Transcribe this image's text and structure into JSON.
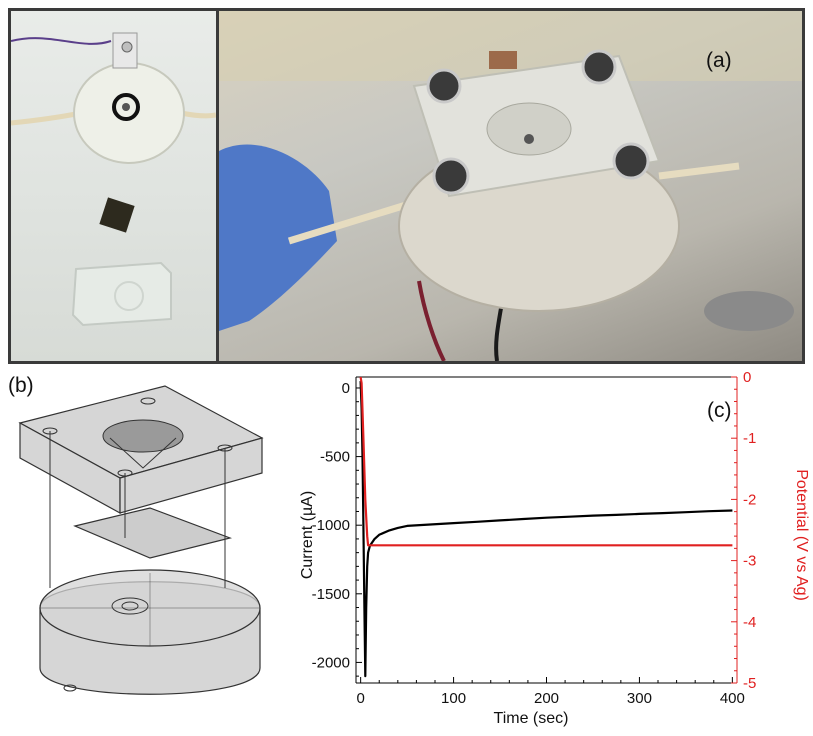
{
  "panels": {
    "a_label": "(a)",
    "b_label": "(b)",
    "c_label": "(c)"
  },
  "photos": {
    "left_subject": "disassembled electrochemical cell",
    "right_subject": "assembled electrochemical cell held in gloved hand"
  },
  "colors": {
    "current": "#000000",
    "potential": "#e02020",
    "frame": "#3a3a3a"
  },
  "chart_data": {
    "type": "line",
    "title": "",
    "xlabel": "Time (sec)",
    "ylabel": "Current (µA)",
    "y2label": "Potential (V vs Ag)",
    "xlim": [
      -5,
      405
    ],
    "ylim": [
      -2150,
      80
    ],
    "y2lim": [
      -5.0,
      0.0
    ],
    "xticks": [
      0,
      100,
      200,
      300,
      400
    ],
    "yticks": [
      0,
      -500,
      -1000,
      -1500,
      -2000
    ],
    "y2ticks": [
      0,
      -1,
      -2,
      -3,
      -4,
      -5
    ],
    "grid": false,
    "series": [
      {
        "axis": "left",
        "color": "#000000",
        "x": [
          0,
          1,
          2,
          3,
          4,
          5,
          6,
          7,
          8,
          10,
          15,
          20,
          30,
          40,
          50,
          75,
          100,
          125,
          150,
          175,
          200,
          225,
          250,
          275,
          300,
          325,
          350,
          375,
          400
        ],
        "y": [
          50,
          -150,
          -500,
          -1000,
          -1600,
          -2100,
          -1600,
          -1300,
          -1200,
          -1150,
          -1100,
          -1070,
          -1040,
          -1020,
          -1005,
          -995,
          -985,
          -975,
          -965,
          -955,
          -945,
          -938,
          -930,
          -925,
          -918,
          -912,
          -905,
          -898,
          -893
        ]
      },
      {
        "axis": "right",
        "color": "#e02020",
        "x": [
          0,
          1,
          3,
          5,
          7,
          8,
          12,
          50,
          100,
          200,
          300,
          400
        ],
        "y": [
          0.0,
          -0.1,
          -1.0,
          -2.0,
          -2.6,
          -2.75,
          -2.75,
          -2.75,
          -2.75,
          -2.75,
          -2.75,
          -2.75
        ]
      }
    ]
  }
}
